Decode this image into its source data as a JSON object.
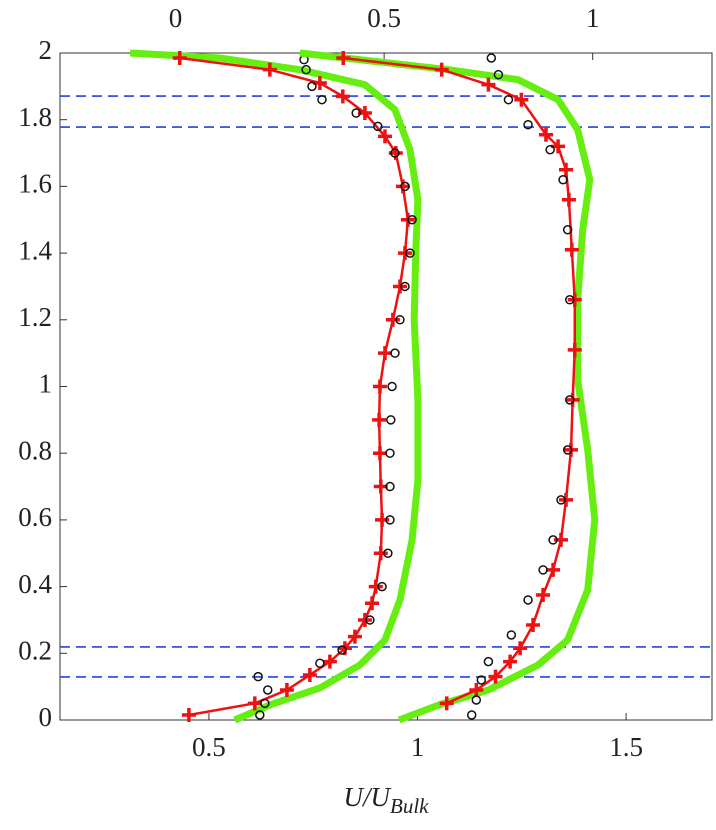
{
  "chart_data": {
    "type": "line",
    "xlabel": "U/U",
    "xlabel_subscript": "Bulk",
    "xlim": [
      0.143,
      1.706
    ],
    "xticks": [
      0.5,
      1,
      1.5
    ],
    "x2lim": [
      -0.277,
      1.286
    ],
    "x2ticks": [
      0,
      0.5,
      1
    ],
    "ylim": [
      0,
      2
    ],
    "yticks": [
      0,
      0.2,
      0.4,
      0.6,
      0.8,
      1,
      1.2,
      1.4,
      1.6,
      1.8,
      2
    ],
    "hlines": {
      "color": "#2244dd",
      "values": [
        1.871,
        1.778,
        0.219,
        0.129
      ]
    },
    "series": [
      {
        "color": "#66ee11",
        "style": "line",
        "axis": "x",
        "x": [
          0.562,
          0.646,
          0.766,
          0.862,
          0.922,
          0.958,
          0.987,
          1.001,
          1.001,
          0.992,
          0.996,
          1.001,
          0.982,
          0.946,
          0.874,
          0.718,
          0.526,
          0.311
        ],
        "y": [
          0,
          0.045,
          0.096,
          0.165,
          0.24,
          0.36,
          0.54,
          0.72,
          0.96,
          1.2,
          1.41,
          1.56,
          1.71,
          1.83,
          1.905,
          1.95,
          1.985,
          2.0
        ]
      },
      {
        "color": "#ee1111",
        "style": "plus",
        "axis": "x",
        "x": [
          0.452,
          0.61,
          0.687,
          0.742,
          0.79,
          0.826,
          0.85,
          0.874,
          0.891,
          0.9,
          0.912,
          0.915,
          0.912,
          0.91,
          0.908,
          0.91,
          0.922,
          0.941,
          0.958,
          0.97,
          0.977,
          0.965,
          0.948,
          0.922,
          0.874,
          0.821,
          0.766,
          0.646,
          0.43
        ],
        "y": [
          0.015,
          0.05,
          0.09,
          0.135,
          0.175,
          0.215,
          0.25,
          0.3,
          0.35,
          0.4,
          0.5,
          0.6,
          0.7,
          0.8,
          0.9,
          1.0,
          1.1,
          1.2,
          1.3,
          1.4,
          1.5,
          1.6,
          1.7,
          1.75,
          1.82,
          1.87,
          1.91,
          1.95,
          1.985
        ]
      },
      {
        "color": "#111111",
        "style": "circle",
        "axis": "x",
        "x": [
          0.622,
          0.634,
          0.641,
          0.618,
          0.766,
          0.819,
          0.886,
          0.915,
          0.929,
          0.934,
          0.934,
          0.934,
          0.936,
          0.939,
          0.946,
          0.958,
          0.97,
          0.982,
          0.987,
          0.97,
          0.946,
          0.905,
          0.853,
          0.771,
          0.747,
          0.733,
          0.728
        ],
        "y": [
          0.015,
          0.05,
          0.09,
          0.13,
          0.17,
          0.21,
          0.3,
          0.4,
          0.5,
          0.6,
          0.7,
          0.8,
          0.9,
          1.0,
          1.1,
          1.2,
          1.3,
          1.4,
          1.5,
          1.6,
          1.7,
          1.78,
          1.82,
          1.86,
          1.9,
          1.95,
          1.98
        ]
      },
      {
        "color": "#66ee11",
        "style": "line",
        "axis": "x2",
        "x": [
          0.536,
          0.631,
          0.75,
          0.869,
          0.94,
          0.988,
          1.005,
          0.988,
          0.964,
          0.964,
          0.976,
          0.993,
          0.964,
          0.917,
          0.821,
          0.655,
          0.298
        ],
        "y": [
          0,
          0.045,
          0.09,
          0.165,
          0.24,
          0.39,
          0.6,
          0.81,
          1.02,
          1.26,
          1.47,
          1.62,
          1.77,
          1.86,
          1.92,
          1.95,
          2.0
        ]
      },
      {
        "color": "#ee1111",
        "style": "plus",
        "axis": "x2",
        "x": [
          0.65,
          0.721,
          0.767,
          0.802,
          0.826,
          0.857,
          0.881,
          0.905,
          0.924,
          0.936,
          0.948,
          0.952,
          0.957,
          0.957,
          0.95,
          0.943,
          0.936,
          0.917,
          0.888,
          0.829,
          0.75,
          0.638,
          0.402
        ],
        "y": [
          0.05,
          0.09,
          0.13,
          0.175,
          0.215,
          0.285,
          0.375,
          0.45,
          0.54,
          0.66,
          0.81,
          0.96,
          1.11,
          1.26,
          1.41,
          1.56,
          1.65,
          1.72,
          1.755,
          1.86,
          1.905,
          1.95,
          1.985
        ]
      },
      {
        "color": "#111111",
        "style": "circle",
        "axis": "x2",
        "x": [
          0.71,
          0.721,
          0.733,
          0.75,
          0.805,
          0.845,
          0.881,
          0.905,
          0.924,
          0.94,
          0.945,
          0.945,
          0.94,
          0.929,
          0.898,
          0.845,
          0.798,
          0.774,
          0.757
        ],
        "y": [
          0.015,
          0.06,
          0.12,
          0.175,
          0.255,
          0.36,
          0.45,
          0.54,
          0.66,
          0.81,
          0.96,
          1.26,
          1.47,
          1.62,
          1.71,
          1.785,
          1.86,
          1.935,
          1.985
        ]
      }
    ]
  }
}
